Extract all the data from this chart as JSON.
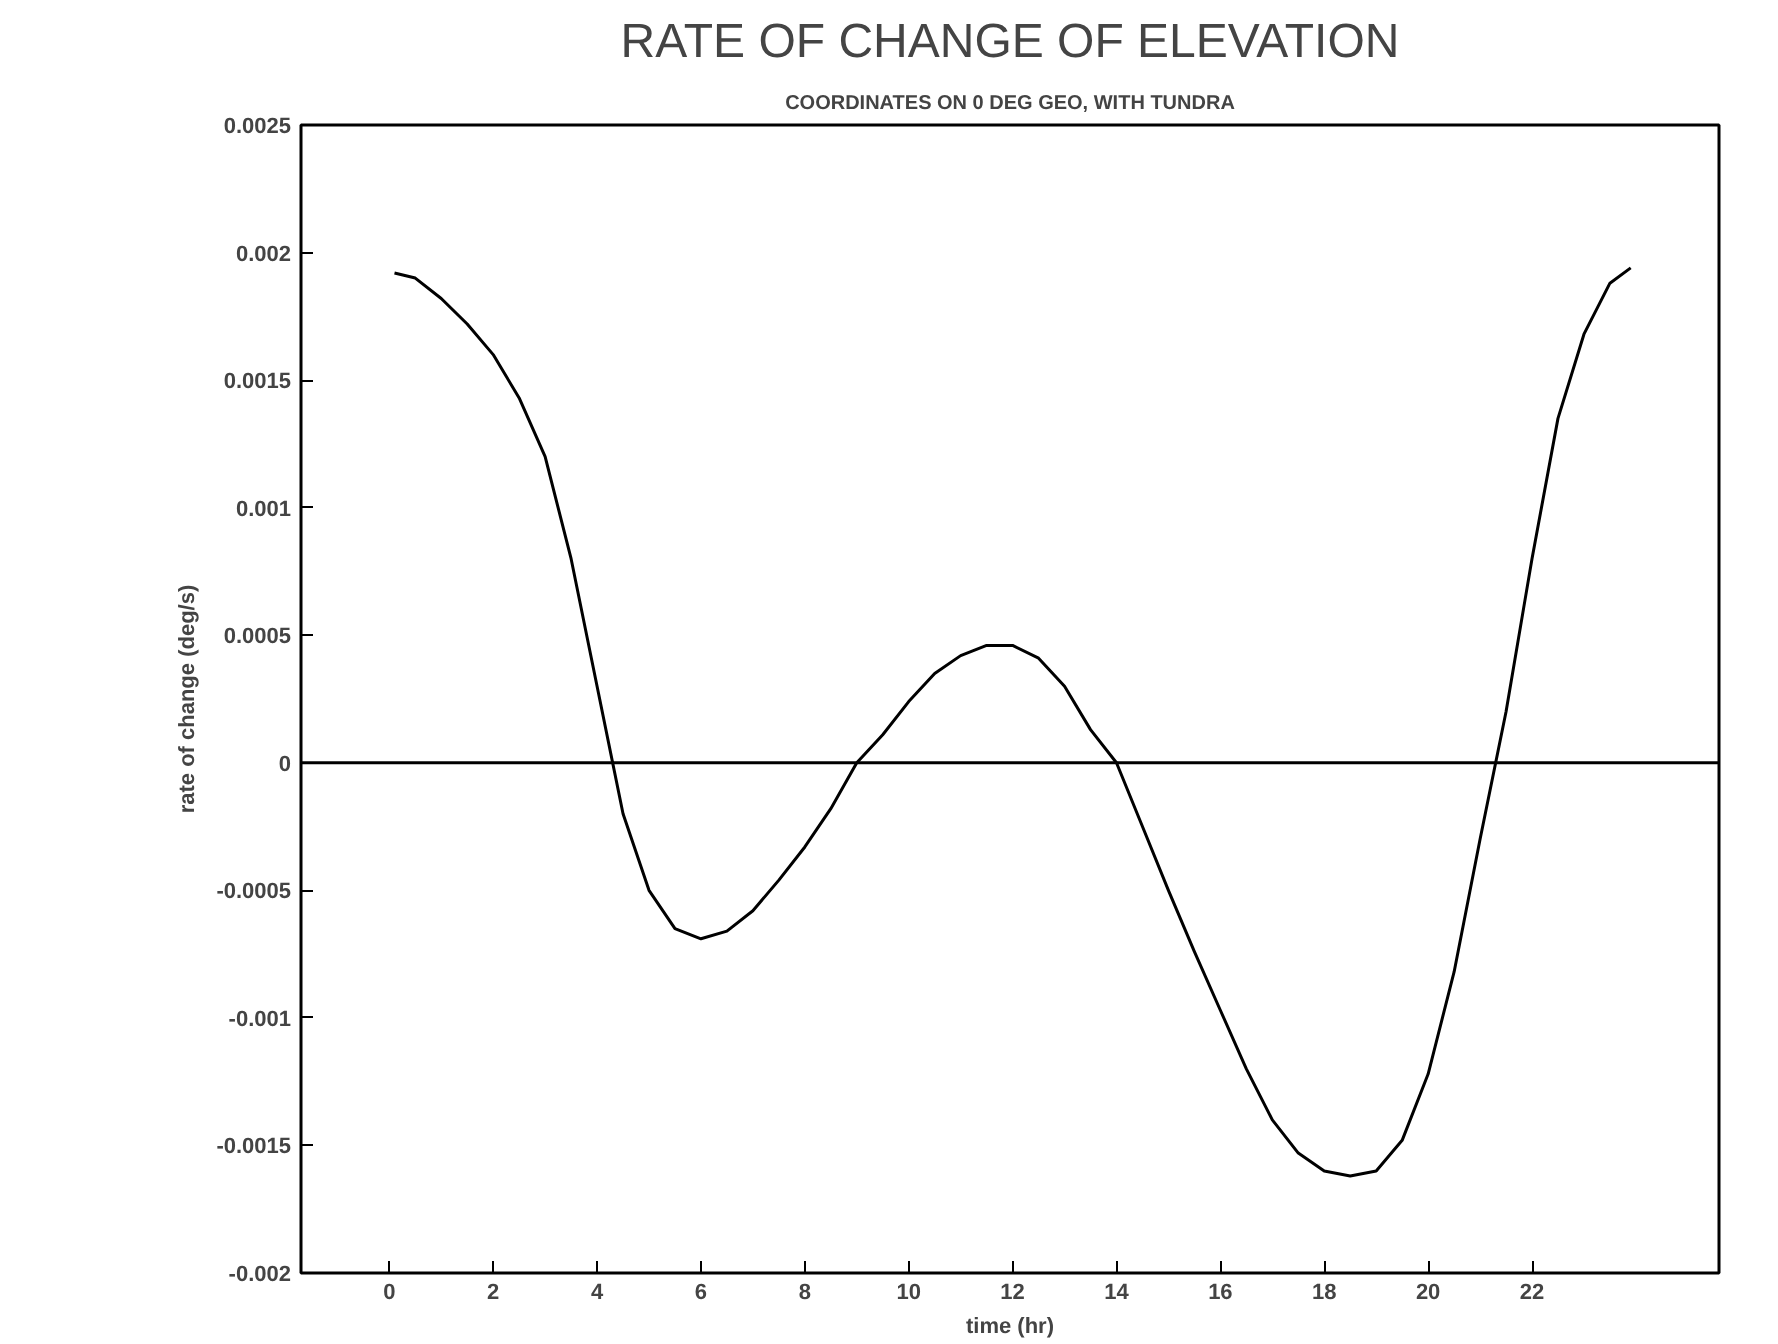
{
  "chart_data": {
    "type": "line",
    "title": "RATE OF CHANGE OF ELEVATION",
    "subtitle": "COORDINATES ON 0 DEG GEO, WITH TUNDRA",
    "xlabel": "time (hr)",
    "ylabel": "rate of change (deg/s)",
    "x": [
      0.1,
      0.5,
      1,
      1.5,
      2,
      2.5,
      3,
      3.5,
      4,
      4.5,
      5,
      5.5,
      6,
      6.5,
      7,
      7.5,
      8,
      8.5,
      9,
      9.5,
      10,
      10.5,
      11,
      11.5,
      12,
      12.5,
      13,
      13.5,
      14,
      14.5,
      15,
      15.5,
      16,
      16.5,
      17,
      17.5,
      18,
      18.5,
      19,
      19.5,
      20,
      20.5,
      21,
      21.5,
      22,
      22.5,
      23,
      23.5,
      23.9
    ],
    "series": [
      {
        "color": "#000000",
        "values": [
          0.00192,
          0.0019,
          0.00182,
          0.00172,
          0.0016,
          0.00143,
          0.0012,
          0.0008,
          0.0003,
          -0.0002,
          -0.0005,
          -0.00065,
          -0.00069,
          -0.00066,
          -0.00058,
          -0.00046,
          -0.00033,
          -0.00018,
          0,
          0.00011,
          0.00024,
          0.00035,
          0.00042,
          0.00046,
          0.00046,
          0.00041,
          0.0003,
          0.00013,
          0,
          -0.00025,
          -0.0005,
          -0.00074,
          -0.00097,
          -0.0012,
          -0.0014,
          -0.00153,
          -0.0016,
          -0.00162,
          -0.0016,
          -0.00148,
          -0.00122,
          -0.00082,
          -0.0003,
          0.0002,
          0.0008,
          0.00135,
          0.00168,
          0.00188,
          0.00194
        ]
      }
    ],
    "xlim": [
      -1.7,
      25.6
    ],
    "ylim": [
      -0.002,
      0.0025
    ],
    "xticks": [
      0,
      2,
      4,
      6,
      8,
      10,
      12,
      14,
      16,
      18,
      20,
      22
    ],
    "yticks": [
      -0.002,
      -0.0015,
      -0.001,
      -0.0005,
      0,
      0.0005,
      0.001,
      0.0015,
      0.002,
      0.0025
    ],
    "ref_lines": [
      {
        "axis": "y",
        "value": 0,
        "color": "#000000"
      }
    ],
    "grid": false,
    "marker": "none",
    "line_style": "solid"
  }
}
